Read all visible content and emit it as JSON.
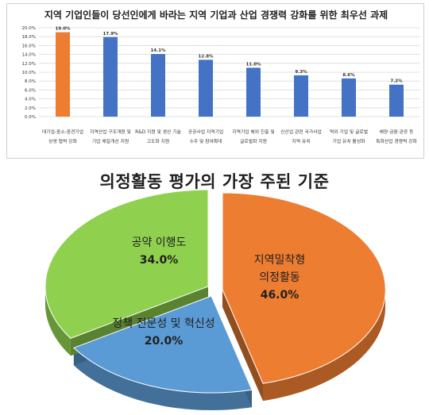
{
  "chart_data": [
    {
      "type": "bar",
      "title": "지역 기업인들이 당선인에게 바라는 지역 기업과 산업 경쟁력 강화를 위한 최우선 과제",
      "categories": [
        [
          "대기업-중소-중견기업",
          "상생 협력 강화"
        ],
        [
          "지역산업 구조개편 및",
          "기업 체질개선 지원"
        ],
        [
          "R&D 지원 및 생산 기술",
          "고도화 지원"
        ],
        [
          "공공사업 지역기업",
          "수주 및 참여확대"
        ],
        [
          "지역기업 해외 진출 및",
          "글로벌화 지원"
        ],
        [
          "신산업 관련 국가사업",
          "지역 유치"
        ],
        [
          "역외 기업 및 글로벌",
          "기업 유치 활성화"
        ],
        [
          "해양·금융·관광 등",
          "특화산업 경쟁력 강화"
        ]
      ],
      "values": [
        19.0,
        17.9,
        14.1,
        12.8,
        11.0,
        9.3,
        8.6,
        7.2
      ],
      "data_labels": [
        "19.0%",
        "17.9%",
        "14.1%",
        "12.8%",
        "11.0%",
        "9.3%",
        "8.6%",
        "7.2%"
      ],
      "yticks": [
        "0.0%",
        "2.0%",
        "4.0%",
        "6.0%",
        "8.0%",
        "10.0%",
        "12.0%",
        "14.0%",
        "16.0%",
        "18.0%",
        "20.0%"
      ],
      "ylim": [
        0,
        20
      ],
      "grid": true,
      "colors": {
        "highlight": "#ED7D31",
        "bar": "#4472C4"
      }
    },
    {
      "type": "pie",
      "title": "의정활동 평가의 가장 주된 기준",
      "slices": [
        {
          "label": [
            "지역밀착형",
            "의정활동"
          ],
          "value": 46.0,
          "value_label": "46.0%",
          "color": "#ED7D31"
        },
        {
          "label": [
            "정책 전문성 및 혁신성"
          ],
          "value": 20.0,
          "value_label": "20.0%",
          "color": "#5B9BD5"
        },
        {
          "label": [
            "공약 이행도"
          ],
          "value": 34.0,
          "value_label": "34.0%",
          "color": "#8FD14F"
        }
      ]
    }
  ]
}
